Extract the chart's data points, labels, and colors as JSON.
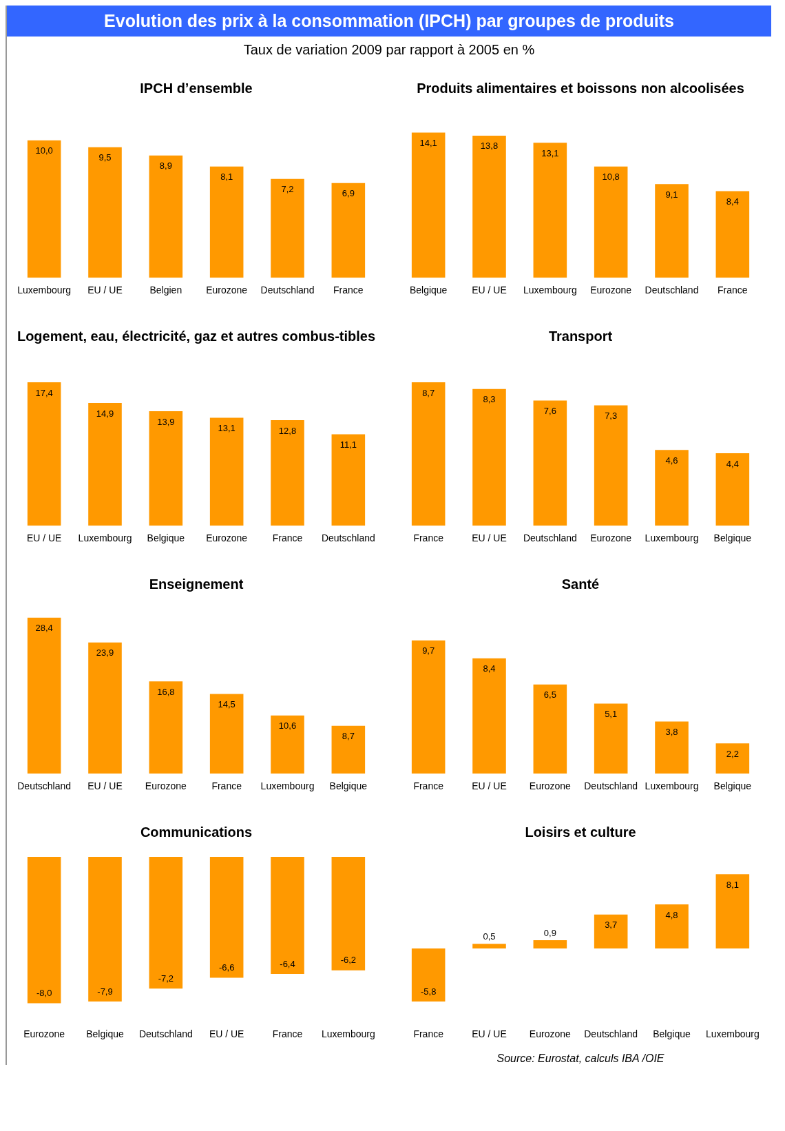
{
  "chart_data": [
    {
      "type": "other",
      "title": "Evolution des prix à la consommation (IPCH) par groupes de produits",
      "subtitle": "Taux de variation 2009 par rapport à 2005 en %"
    },
    {
      "type": "bar",
      "title": "IPCH d’ensemble",
      "categories": [
        "Luxembourg",
        "EU / UE",
        "Belgien",
        "Eurozone",
        "Deutschland",
        "France"
      ],
      "values": [
        10.0,
        9.5,
        8.9,
        8.1,
        7.2,
        6.9
      ],
      "value_labels": [
        "10,0",
        "9,5",
        "8,9",
        "8,1",
        "7,2",
        "6,9"
      ],
      "color": "#ff9900"
    },
    {
      "type": "bar",
      "title": "Produits alimentaires et boissons non alcoolisées",
      "categories": [
        "Belgique",
        "EU / UE",
        "Luxembourg",
        "Eurozone",
        "Deutschland",
        "France"
      ],
      "values": [
        14.1,
        13.8,
        13.1,
        10.8,
        9.1,
        8.4
      ],
      "value_labels": [
        "14,1",
        "13,8",
        "13,1",
        "10,8",
        "9,1",
        "8,4"
      ],
      "color": "#ff9900"
    },
    {
      "type": "bar",
      "title": "Logement, eau, électricité, gaz et autres combus-tibles",
      "categories": [
        "EU / UE",
        "Luxembourg",
        "Belgique",
        "Eurozone",
        "France",
        "Deutschland"
      ],
      "values": [
        17.4,
        14.9,
        13.9,
        13.1,
        12.8,
        11.1
      ],
      "value_labels": [
        "17,4",
        "14,9",
        "13,9",
        "13,1",
        "12,8",
        "11,1"
      ],
      "color": "#ff9900"
    },
    {
      "type": "bar",
      "title": "Transport",
      "categories": [
        "France",
        "EU / UE",
        "Deutschland",
        "Eurozone",
        "Luxembourg",
        "Belgique"
      ],
      "values": [
        8.7,
        8.3,
        7.6,
        7.3,
        4.6,
        4.4
      ],
      "value_labels": [
        "8,7",
        "8,3",
        "7,6",
        "7,3",
        "4,6",
        "4,4"
      ],
      "color": "#ff9900"
    },
    {
      "type": "bar",
      "title": "Enseignement",
      "categories": [
        "Deutschland",
        "EU / UE",
        "Eurozone",
        "France",
        "Luxembourg",
        "Belgique"
      ],
      "values": [
        28.4,
        23.9,
        16.8,
        14.5,
        10.6,
        8.7
      ],
      "value_labels": [
        "28,4",
        "23,9",
        "16,8",
        "14,5",
        "10,6",
        "8,7"
      ],
      "color": "#ff9900"
    },
    {
      "type": "bar",
      "title": "Santé",
      "categories": [
        "France",
        "EU / UE",
        "Eurozone",
        "Deutschland",
        "Luxembourg",
        "Belgique"
      ],
      "values": [
        9.7,
        8.4,
        6.5,
        5.1,
        3.8,
        2.2
      ],
      "value_labels": [
        "9,7",
        "8,4",
        "6,5",
        "5,1",
        "3,8",
        "2,2"
      ],
      "color": "#ff9900"
    },
    {
      "type": "bar",
      "title": "Communications",
      "categories": [
        "Eurozone",
        "Belgique",
        "Deutschland",
        "EU / UE",
        "France",
        "Luxembourg"
      ],
      "values": [
        -8.0,
        -7.9,
        -7.2,
        -6.6,
        -6.4,
        -6.2
      ],
      "value_labels": [
        "-8,0",
        "-7,9",
        "-7,2",
        "-6,6",
        "-6,4",
        "-6,2"
      ],
      "color": "#ff9900"
    },
    {
      "type": "bar",
      "title": "Loisirs et culture",
      "categories": [
        "France",
        "EU / UE",
        "Eurozone",
        "Deutschland",
        "Belgique",
        "Luxembourg"
      ],
      "values": [
        -5.8,
        0.5,
        0.9,
        3.7,
        4.8,
        8.1
      ],
      "value_labels": [
        "-5,8",
        "0,5",
        "0,9",
        "3,7",
        "4,8",
        "8,1"
      ],
      "color": "#ff9900",
      "annotations": [
        "Source: Eurostat, calculs IBA /OIE"
      ]
    }
  ]
}
